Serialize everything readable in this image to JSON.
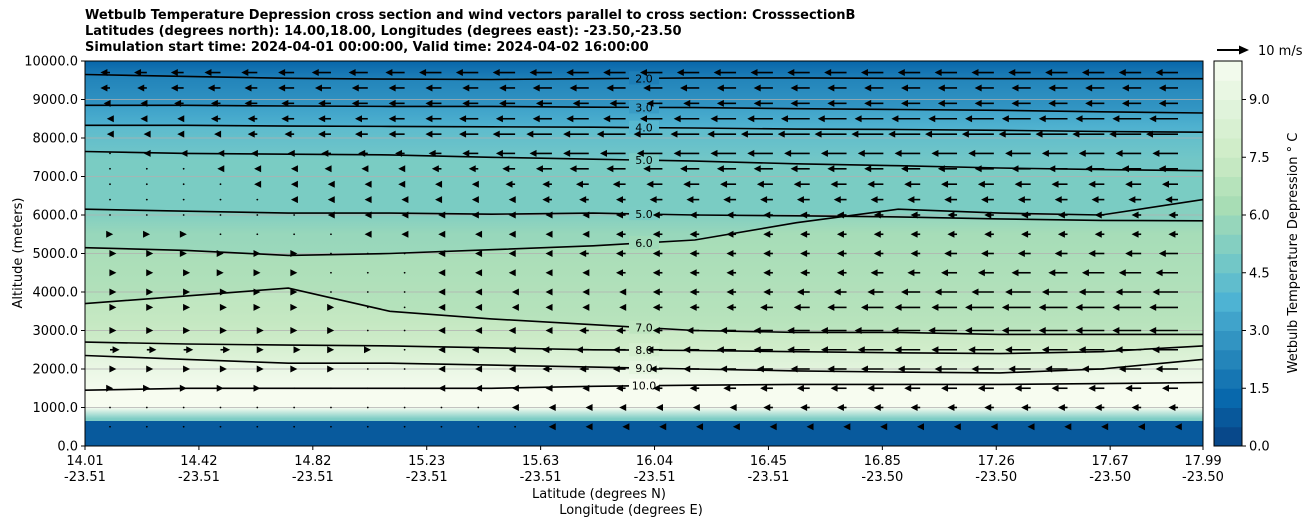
{
  "chart_data": {
    "type": "contour",
    "title_lines": [
      "Wetbulb Temperature Depression cross section and wind vectors parallel to cross section: CrosssectionB",
      "Latitudes (degrees north): 14.00,18.00, Longitudes (degrees east): -23.50,-23.50",
      "Simulation start time: 2024-04-01 00:00:00, Valid time: 2024-04-02 16:00:00"
    ],
    "ylabel": "Altitude (meters)",
    "xlabel_lines": [
      "Latitude (degrees N)",
      "Longitude (degrees E)"
    ],
    "ylim": [
      0,
      10000
    ],
    "y_ticks": [
      "0.0",
      "1000.0",
      "2000.0",
      "3000.0",
      "4000.0",
      "5000.0",
      "6000.0",
      "7000.0",
      "8000.0",
      "9000.0",
      "10000.0"
    ],
    "x_ticks": [
      {
        "lat": "14.01",
        "lon": "-23.51"
      },
      {
        "lat": "14.42",
        "lon": "-23.51"
      },
      {
        "lat": "14.82",
        "lon": "-23.51"
      },
      {
        "lat": "15.23",
        "lon": "-23.51"
      },
      {
        "lat": "15.63",
        "lon": "-23.51"
      },
      {
        "lat": "16.04",
        "lon": "-23.51"
      },
      {
        "lat": "16.45",
        "lon": "-23.51"
      },
      {
        "lat": "16.85",
        "lon": "-23.50"
      },
      {
        "lat": "17.26",
        "lon": "-23.50"
      },
      {
        "lat": "17.67",
        "lon": "-23.50"
      },
      {
        "lat": "17.99",
        "lon": "-23.50"
      }
    ],
    "horizontal_grid": true,
    "colorbar": {
      "label": "Wetbulb Temperature Depression $^\\circ$C",
      "label_display": "Wetbulb Temperature Depression ° C",
      "ticks": [
        "0.0",
        "1.5",
        "3.0",
        "4.5",
        "6.0",
        "7.5",
        "9.0"
      ],
      "range": [
        0,
        10
      ],
      "levels": 20,
      "colormap": "GnBu_r"
    },
    "quiver_key": {
      "label": "10 m/s",
      "speed": 10
    },
    "contours": [
      {
        "level": 2.0,
        "label": "2.0",
        "y": [
          9650,
          9600,
          9550,
          9530,
          9520,
          9540,
          9560,
          9560,
          9550,
          9540,
          9540,
          9540
        ]
      },
      {
        "level": 3.0,
        "label": "3.0",
        "y": [
          8850,
          8850,
          8830,
          8820,
          8820,
          8800,
          8790,
          8760,
          8740,
          8720,
          8680,
          8650
        ]
      },
      {
        "level": 4.0,
        "label": "4.0",
        "y": [
          8330,
          8330,
          8310,
          8300,
          8290,
          8280,
          8260,
          8230,
          8220,
          8200,
          8170,
          8150
        ]
      },
      {
        "level": 5.0,
        "label": "5.0",
        "y": [
          7650,
          7600,
          7580,
          7560,
          7500,
          7450,
          7400,
          7330,
          7280,
          7220,
          7180,
          7150
        ]
      },
      {
        "level": 5.0,
        "label": "5.0",
        "y": [
          6150,
          6100,
          6050,
          6050,
          6020,
          6050,
          6000,
          5980,
          5950,
          5900,
          5860,
          5850
        ]
      },
      {
        "level": 6.0,
        "label": "6.0",
        "y": [
          5150,
          5080,
          4950,
          5000,
          5100,
          5200,
          5350,
          5800,
          6150,
          6050,
          6000,
          6400
        ]
      },
      {
        "level": 7.0,
        "label": "7.0",
        "y": [
          3700,
          3900,
          4100,
          3500,
          3300,
          3150,
          3000,
          2950,
          2950,
          2900,
          2900,
          2900
        ]
      },
      {
        "level": 8.0,
        "label": "8.0",
        "y": [
          2700,
          2650,
          2620,
          2600,
          2550,
          2500,
          2480,
          2450,
          2420,
          2400,
          2450,
          2600
        ]
      },
      {
        "level": 9.0,
        "label": "9.0",
        "y": [
          2350,
          2250,
          2150,
          2150,
          2100,
          2050,
          2000,
          1950,
          1920,
          1900,
          2000,
          2250
        ]
      },
      {
        "level": 10.0,
        "label": "10.0",
        "y": [
          1450,
          1500,
          1500,
          1500,
          1500,
          1550,
          1580,
          1600,
          1600,
          1600,
          1620,
          1650
        ]
      }
    ],
    "wind_rows": [
      {
        "z": 9700,
        "u": [
          -3,
          -4,
          -4,
          -5,
          -5,
          -5,
          -6,
          -6,
          -6,
          -7,
          -7,
          -7,
          -7,
          -7,
          -7,
          -7,
          -7,
          -7,
          -7,
          -7,
          -7,
          -7,
          -7,
          -7,
          -7,
          -7,
          -7,
          -7,
          -7,
          -7
        ]
      },
      {
        "z": 9300,
        "u": [
          -3,
          -3,
          -4,
          -4,
          -4,
          -5,
          -5,
          -5,
          -5,
          -5,
          -5,
          -5,
          -6,
          -6,
          -6,
          -6,
          -6,
          -6,
          -6,
          -6,
          -6,
          -6,
          -6,
          -6,
          -6,
          -6,
          -6,
          -6,
          -6,
          -6
        ]
      },
      {
        "z": 8900,
        "u": [
          -2,
          -2,
          -3,
          -3,
          -4,
          -4,
          -4,
          -5,
          -5,
          -5,
          -5,
          -5,
          -5,
          -5,
          -5,
          -5,
          -5,
          -6,
          -6,
          -6,
          -6,
          -6,
          -6,
          -6,
          -6,
          -6,
          -6,
          -6,
          -6,
          -6
        ]
      },
      {
        "z": 8500,
        "u": [
          -1,
          -2,
          -2,
          -3,
          -3,
          -4,
          -4,
          -4,
          -5,
          -5,
          -6,
          -6,
          -6,
          -7,
          -7,
          -7,
          -8,
          -8,
          -8,
          -9,
          -9,
          -9,
          -9,
          -9,
          -9,
          -9,
          -9,
          -9,
          -9,
          -9
        ]
      },
      {
        "z": 8100,
        "u": [
          -1,
          -1,
          -2,
          -2,
          -3,
          -3,
          -4,
          -4,
          -5,
          -5,
          -6,
          -7,
          -8,
          -8,
          -9,
          -9,
          -9,
          -9,
          -10,
          -10,
          -10,
          -10,
          -10,
          -10,
          -10,
          -10,
          -10,
          -10,
          -10,
          -10
        ]
      },
      {
        "z": 7600,
        "u": [
          0,
          -1,
          -1,
          -1,
          -2,
          -2,
          -3,
          -3,
          -3,
          -4,
          -5,
          -6,
          -7,
          -8,
          -8,
          -8,
          -8,
          -8,
          -8,
          -8,
          -8,
          -8,
          -8,
          -8,
          -8,
          -8,
          -8,
          -8,
          -8,
          -8
        ]
      },
      {
        "z": 7200,
        "u": [
          0,
          0,
          0,
          -1,
          -1,
          -1,
          -2,
          -2,
          -2,
          -3,
          -3,
          -4,
          -5,
          -6,
          -6,
          -6,
          -6,
          -6,
          -6,
          -6,
          -6,
          -6,
          -6,
          -6,
          -6,
          -6,
          -6,
          -6,
          -6,
          -6
        ]
      },
      {
        "z": 6800,
        "u": [
          0,
          0,
          0,
          0,
          -1,
          -1,
          -1,
          -1,
          -2,
          -2,
          -2,
          -3,
          -3,
          -4,
          -4,
          -5,
          -5,
          -5,
          -5,
          -5,
          -5,
          -5,
          -5,
          -5,
          -5,
          -5,
          -5,
          -5,
          -5,
          -5
        ]
      },
      {
        "z": 6400,
        "u": [
          0,
          0,
          0,
          0,
          0,
          -1,
          -1,
          -1,
          -1,
          -2,
          -2,
          -2,
          -3,
          -3,
          -3,
          -4,
          -4,
          -4,
          -4,
          -4,
          -4,
          -4,
          -4,
          -4,
          -4,
          -4,
          -4,
          -4,
          -4,
          -4
        ]
      },
      {
        "z": 6000,
        "u": [
          0,
          0,
          0,
          0,
          0,
          0,
          -1,
          -1,
          -1,
          -1,
          -2,
          -2,
          -2,
          -2,
          -3,
          -3,
          -3,
          -3,
          -3,
          -3,
          -3,
          -3,
          -3,
          -3,
          -3,
          -3,
          -3,
          -3,
          -3,
          -3
        ]
      },
      {
        "z": 5500,
        "u": [
          1,
          1,
          1,
          0,
          0,
          0,
          0,
          -1,
          -1,
          -1,
          -1,
          -2,
          -2,
          -2,
          -3,
          -3,
          -3,
          -3,
          -3,
          -3,
          -3,
          -3,
          -3,
          -3,
          -3,
          -3,
          -3,
          -3,
          -3,
          -3
        ]
      },
      {
        "z": 5000,
        "u": [
          2,
          2,
          1,
          1,
          1,
          1,
          0,
          0,
          0,
          -1,
          -1,
          -2,
          -2,
          -3,
          -3,
          -3,
          -3,
          -3,
          -3,
          -3,
          -3,
          -3,
          -3,
          -4,
          -4,
          -4,
          -4,
          -5,
          -5,
          -6
        ]
      },
      {
        "z": 4500,
        "u": [
          2,
          2,
          2,
          1,
          1,
          1,
          0,
          0,
          0,
          -1,
          -1,
          -2,
          -2,
          -2,
          -3,
          -3,
          -3,
          -3,
          -3,
          -3,
          -3,
          -4,
          -4,
          -5,
          -5,
          -6,
          -6,
          -7,
          -7,
          -7
        ]
      },
      {
        "z": 4000,
        "u": [
          2,
          2,
          2,
          2,
          1,
          1,
          0,
          0,
          0,
          -1,
          -1,
          -1,
          -2,
          -2,
          -2,
          -3,
          -3,
          -3,
          -3,
          -4,
          -4,
          -5,
          -6,
          -7,
          -7,
          -8,
          -8,
          -8,
          -8,
          -8
        ]
      },
      {
        "z": 3600,
        "u": [
          2,
          2,
          2,
          2,
          1,
          1,
          1,
          0,
          0,
          -1,
          -1,
          -1,
          -2,
          -2,
          -2,
          -3,
          -3,
          -3,
          -4,
          -5,
          -6,
          -7,
          -8,
          -8,
          -9,
          -9,
          -9,
          -9,
          -9,
          -9
        ]
      },
      {
        "z": 3000,
        "u": [
          2,
          2,
          2,
          2,
          2,
          1,
          1,
          0,
          0,
          -1,
          -1,
          -2,
          -2,
          -3,
          -3,
          -3,
          -4,
          -5,
          -6,
          -7,
          -8,
          -9,
          -9,
          -9,
          -9,
          -9,
          -9,
          -9,
          -9,
          -9
        ]
      },
      {
        "z": 2500,
        "u": [
          3,
          3,
          3,
          3,
          2,
          2,
          1,
          1,
          0,
          -1,
          -2,
          -2,
          -3,
          -4,
          -4,
          -5,
          -5,
          -6,
          -6,
          -7,
          -8,
          -8,
          -8,
          -8,
          -8,
          -8,
          -8,
          -8,
          -8,
          -8
        ]
      },
      {
        "z": 2000,
        "u": [
          2,
          2,
          2,
          2,
          2,
          1,
          1,
          0,
          0,
          -1,
          -1,
          -2,
          -3,
          -3,
          -4,
          -4,
          -5,
          -5,
          -5,
          -6,
          -6,
          -7,
          -7,
          -7,
          -7,
          -7,
          -7,
          -7,
          -7,
          -7
        ]
      },
      {
        "z": 1500,
        "u": [
          1,
          1,
          1,
          1,
          1,
          0,
          0,
          0,
          0,
          -1,
          -1,
          -1,
          -2,
          -2,
          -3,
          -3,
          -3,
          -4,
          -4,
          -4,
          -5,
          -5,
          -5,
          -5,
          -5,
          -5,
          -5,
          -5,
          -5,
          -5
        ]
      },
      {
        "z": 1000,
        "u": [
          0,
          0,
          0,
          0,
          0,
          0,
          0,
          0,
          0,
          0,
          0,
          -1,
          -1,
          -1,
          -2,
          -2,
          -2,
          -2,
          -3,
          -3,
          -3,
          -3,
          -3,
          -3,
          -3,
          -3,
          -3,
          -3,
          -3,
          -3
        ]
      },
      {
        "z": 500,
        "u": [
          0,
          0,
          0,
          0,
          0,
          0,
          0,
          0,
          0,
          0,
          0,
          0,
          -1,
          -1,
          -1,
          -1,
          -1,
          -1,
          -1,
          -1,
          -1,
          -1,
          -1,
          -1,
          -1,
          -1,
          -1,
          -1,
          -1,
          -1
        ]
      }
    ]
  }
}
